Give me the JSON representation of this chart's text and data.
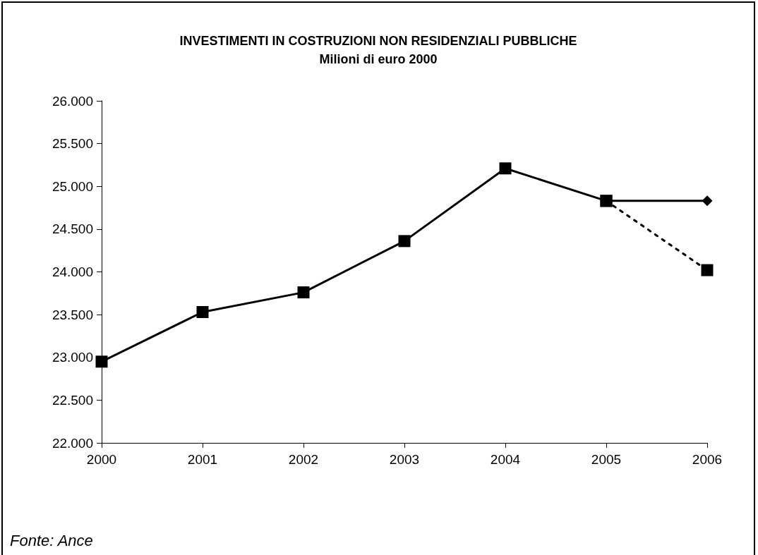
{
  "chart_data": {
    "type": "line",
    "title": "INVESTIMENTI IN COSTRUZIONI NON RESIDENZIALI PUBBLICHE",
    "subtitle": "Milioni di euro 2000",
    "categories": [
      "2000",
      "2001",
      "2002",
      "2003",
      "2004",
      "2005",
      "2006"
    ],
    "series": [
      {
        "color": "#000000",
        "marker": "square",
        "line_style": "solid",
        "values": [
          22950,
          23530,
          23760,
          24360,
          25210,
          24830,
          null
        ]
      },
      {
        "color": "#000000",
        "marker": "square",
        "line_style": "dashed",
        "values": [
          null,
          null,
          null,
          null,
          null,
          24830,
          24020
        ]
      },
      {
        "color": "#000000",
        "marker": "diamond",
        "line_style": "solid",
        "values": [
          null,
          null,
          null,
          null,
          null,
          24830,
          24830
        ]
      }
    ],
    "ylim": [
      22000,
      26000
    ],
    "yticks": [
      {
        "value": 22000,
        "label": "22.000"
      },
      {
        "value": 22500,
        "label": "22.500"
      },
      {
        "value": 23000,
        "label": "23.000"
      },
      {
        "value": 23500,
        "label": "23.500"
      },
      {
        "value": 24000,
        "label": "24.000"
      },
      {
        "value": 24500,
        "label": "24.500"
      },
      {
        "value": 25000,
        "label": "25.000"
      },
      {
        "value": 25500,
        "label": "25.500"
      },
      {
        "value": 26000,
        "label": "26.000"
      }
    ],
    "grid": false,
    "annotations": [
      "Fonte: Ance"
    ]
  }
}
